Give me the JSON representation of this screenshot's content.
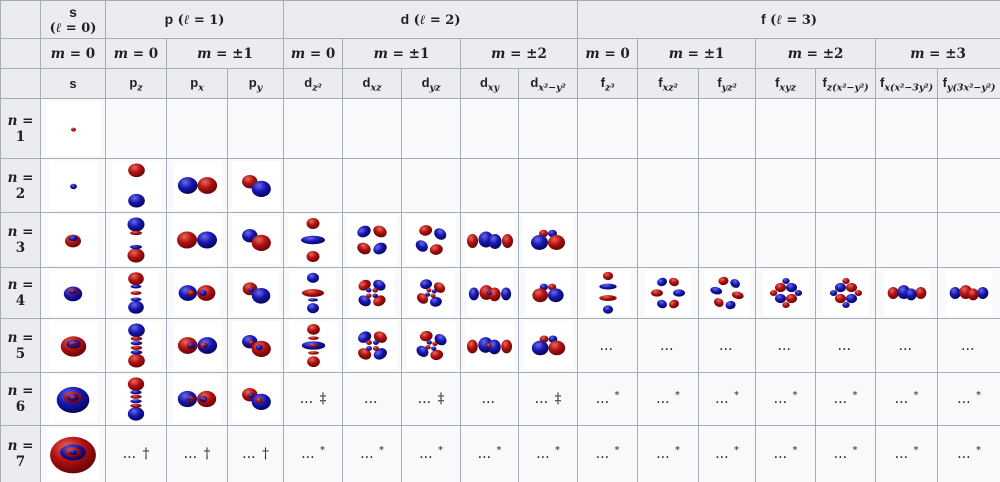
{
  "colors": {
    "lobe_red": "#b01111",
    "lobe_blue": "#1717b5",
    "header_bg": "#eaecf0",
    "cell_bg": "#f8f9fa",
    "image_bg": "#ffffff",
    "border": "#a7adb3",
    "text": "#202122"
  },
  "table": {
    "shell_groups": [
      {
        "id": "s",
        "letter": "s",
        "math": "(ℓ = 0)",
        "span": 1,
        "two_line": true
      },
      {
        "id": "p",
        "letter": "p",
        "math": "(ℓ = 1)",
        "span": 3,
        "two_line": false
      },
      {
        "id": "d",
        "letter": "d",
        "math": "(ℓ = 2)",
        "span": 5,
        "two_line": false
      },
      {
        "id": "f",
        "letter": "f",
        "math": "(ℓ = 3)",
        "span": 7,
        "two_line": false
      }
    ],
    "m_groups": [
      {
        "shell": "s",
        "label": "m = 0",
        "span": 1
      },
      {
        "shell": "p",
        "label": "m = 0",
        "span": 1
      },
      {
        "shell": "p",
        "label": "m = ±1",
        "span": 2
      },
      {
        "shell": "d",
        "label": "m = 0",
        "span": 1
      },
      {
        "shell": "d",
        "label": "m = ±1",
        "span": 2
      },
      {
        "shell": "d",
        "label": "m = ±2",
        "span": 2
      },
      {
        "shell": "f",
        "label": "m = 0",
        "span": 1
      },
      {
        "shell": "f",
        "label": "m = ±1",
        "span": 2
      },
      {
        "shell": "f",
        "label": "m = ±2",
        "span": 2
      },
      {
        "shell": "f",
        "label": "m = ±3",
        "span": 2
      }
    ],
    "orbital_columns": [
      {
        "code": "s",
        "base": "s",
        "sub": ""
      },
      {
        "code": "pz",
        "base": "p",
        "sub": "z"
      },
      {
        "code": "px",
        "base": "p",
        "sub": "x"
      },
      {
        "code": "py",
        "base": "p",
        "sub": "y"
      },
      {
        "code": "dz2",
        "base": "d",
        "sub": "z²"
      },
      {
        "code": "dxz",
        "base": "d",
        "sub": "xz"
      },
      {
        "code": "dyz",
        "base": "d",
        "sub": "yz"
      },
      {
        "code": "dxy",
        "base": "d",
        "sub": "xy"
      },
      {
        "code": "dx2y2",
        "base": "d",
        "sub": "x²−y²"
      },
      {
        "code": "fz3",
        "base": "f",
        "sub": "z³"
      },
      {
        "code": "fxz2",
        "base": "f",
        "sub": "xz²"
      },
      {
        "code": "fyz2",
        "base": "f",
        "sub": "yz²"
      },
      {
        "code": "fxyz",
        "base": "f",
        "sub": "xyz"
      },
      {
        "code": "fzx2y2",
        "base": "f",
        "sub": "z(x²−y²)"
      },
      {
        "code": "fxx2m3y2",
        "base": "f",
        "sub": "x(x²−3y²)"
      },
      {
        "code": "fy3x2my2",
        "base": "f",
        "sub": "y(3x²−y²)"
      }
    ],
    "rows": [
      {
        "label": "n = 1",
        "n": 1,
        "cells": [
          {
            "img": "s"
          },
          null,
          null,
          null,
          null,
          null,
          null,
          null,
          null,
          null,
          null,
          null,
          null,
          null,
          null,
          null
        ]
      },
      {
        "label": "n = 2",
        "n": 2,
        "cells": [
          {
            "img": "s"
          },
          {
            "img": "pz"
          },
          {
            "img": "px"
          },
          {
            "img": "py"
          },
          null,
          null,
          null,
          null,
          null,
          null,
          null,
          null,
          null,
          null,
          null,
          null
        ]
      },
      {
        "label": "n = 3",
        "n": 3,
        "cells": [
          {
            "img": "s"
          },
          {
            "img": "pz"
          },
          {
            "img": "px"
          },
          {
            "img": "py"
          },
          {
            "img": "dz2"
          },
          {
            "img": "dxz"
          },
          {
            "img": "dyz"
          },
          {
            "img": "dxy"
          },
          {
            "img": "dx2y2"
          },
          null,
          null,
          null,
          null,
          null,
          null,
          null
        ]
      },
      {
        "label": "n = 4",
        "n": 4,
        "cells": [
          {
            "img": "s"
          },
          {
            "img": "pz"
          },
          {
            "img": "px"
          },
          {
            "img": "py"
          },
          {
            "img": "dz2"
          },
          {
            "img": "dxz"
          },
          {
            "img": "dyz"
          },
          {
            "img": "dxy"
          },
          {
            "img": "dx2y2"
          },
          {
            "img": "fz3"
          },
          {
            "img": "fxz2"
          },
          {
            "img": "fyz2"
          },
          {
            "img": "fxyz"
          },
          {
            "img": "fzx2y2"
          },
          {
            "img": "fxx2m3y2"
          },
          {
            "img": "fy3x2my2"
          }
        ]
      },
      {
        "label": "n = 5",
        "n": 5,
        "cells": [
          {
            "img": "s"
          },
          {
            "img": "pz"
          },
          {
            "img": "px"
          },
          {
            "img": "py"
          },
          {
            "img": "dz2"
          },
          {
            "img": "dxz"
          },
          {
            "img": "dyz"
          },
          {
            "img": "dxy"
          },
          {
            "img": "dx2y2"
          },
          {
            "note": "…",
            "mark": ""
          },
          {
            "note": "…",
            "mark": ""
          },
          {
            "note": "…",
            "mark": ""
          },
          {
            "note": "…",
            "mark": ""
          },
          {
            "note": "…",
            "mark": ""
          },
          {
            "note": "…",
            "mark": ""
          },
          {
            "note": "…",
            "mark": ""
          }
        ]
      },
      {
        "label": "n = 6",
        "n": 6,
        "cells": [
          {
            "img": "s"
          },
          {
            "img": "pz"
          },
          {
            "img": "px"
          },
          {
            "img": "py"
          },
          {
            "note": "…",
            "mark": "‡"
          },
          {
            "note": "…",
            "mark": ""
          },
          {
            "note": "…",
            "mark": "‡"
          },
          {
            "note": "…",
            "mark": ""
          },
          {
            "note": "…",
            "mark": "‡"
          },
          {
            "note": "…",
            "mark": "*"
          },
          {
            "note": "…",
            "mark": "*"
          },
          {
            "note": "…",
            "mark": "*"
          },
          {
            "note": "…",
            "mark": "*"
          },
          {
            "note": "…",
            "mark": "*"
          },
          {
            "note": "…",
            "mark": "*"
          },
          {
            "note": "…",
            "mark": "*"
          }
        ]
      },
      {
        "label": "n = 7",
        "n": 7,
        "cells": [
          {
            "img": "s"
          },
          {
            "note": "…",
            "mark": "†"
          },
          {
            "note": "…",
            "mark": "†"
          },
          {
            "note": "…",
            "mark": "†"
          },
          {
            "note": "…",
            "mark": "*"
          },
          {
            "note": "…",
            "mark": "*"
          },
          {
            "note": "…",
            "mark": "*"
          },
          {
            "note": "…",
            "mark": "*"
          },
          {
            "note": "…",
            "mark": "*"
          },
          {
            "note": "…",
            "mark": "*"
          },
          {
            "note": "…",
            "mark": "*"
          },
          {
            "note": "…",
            "mark": "*"
          },
          {
            "note": "…",
            "mark": "*"
          },
          {
            "note": "…",
            "mark": "*"
          },
          {
            "note": "…",
            "mark": "*"
          },
          {
            "note": "…",
            "mark": "*"
          }
        ]
      }
    ]
  }
}
